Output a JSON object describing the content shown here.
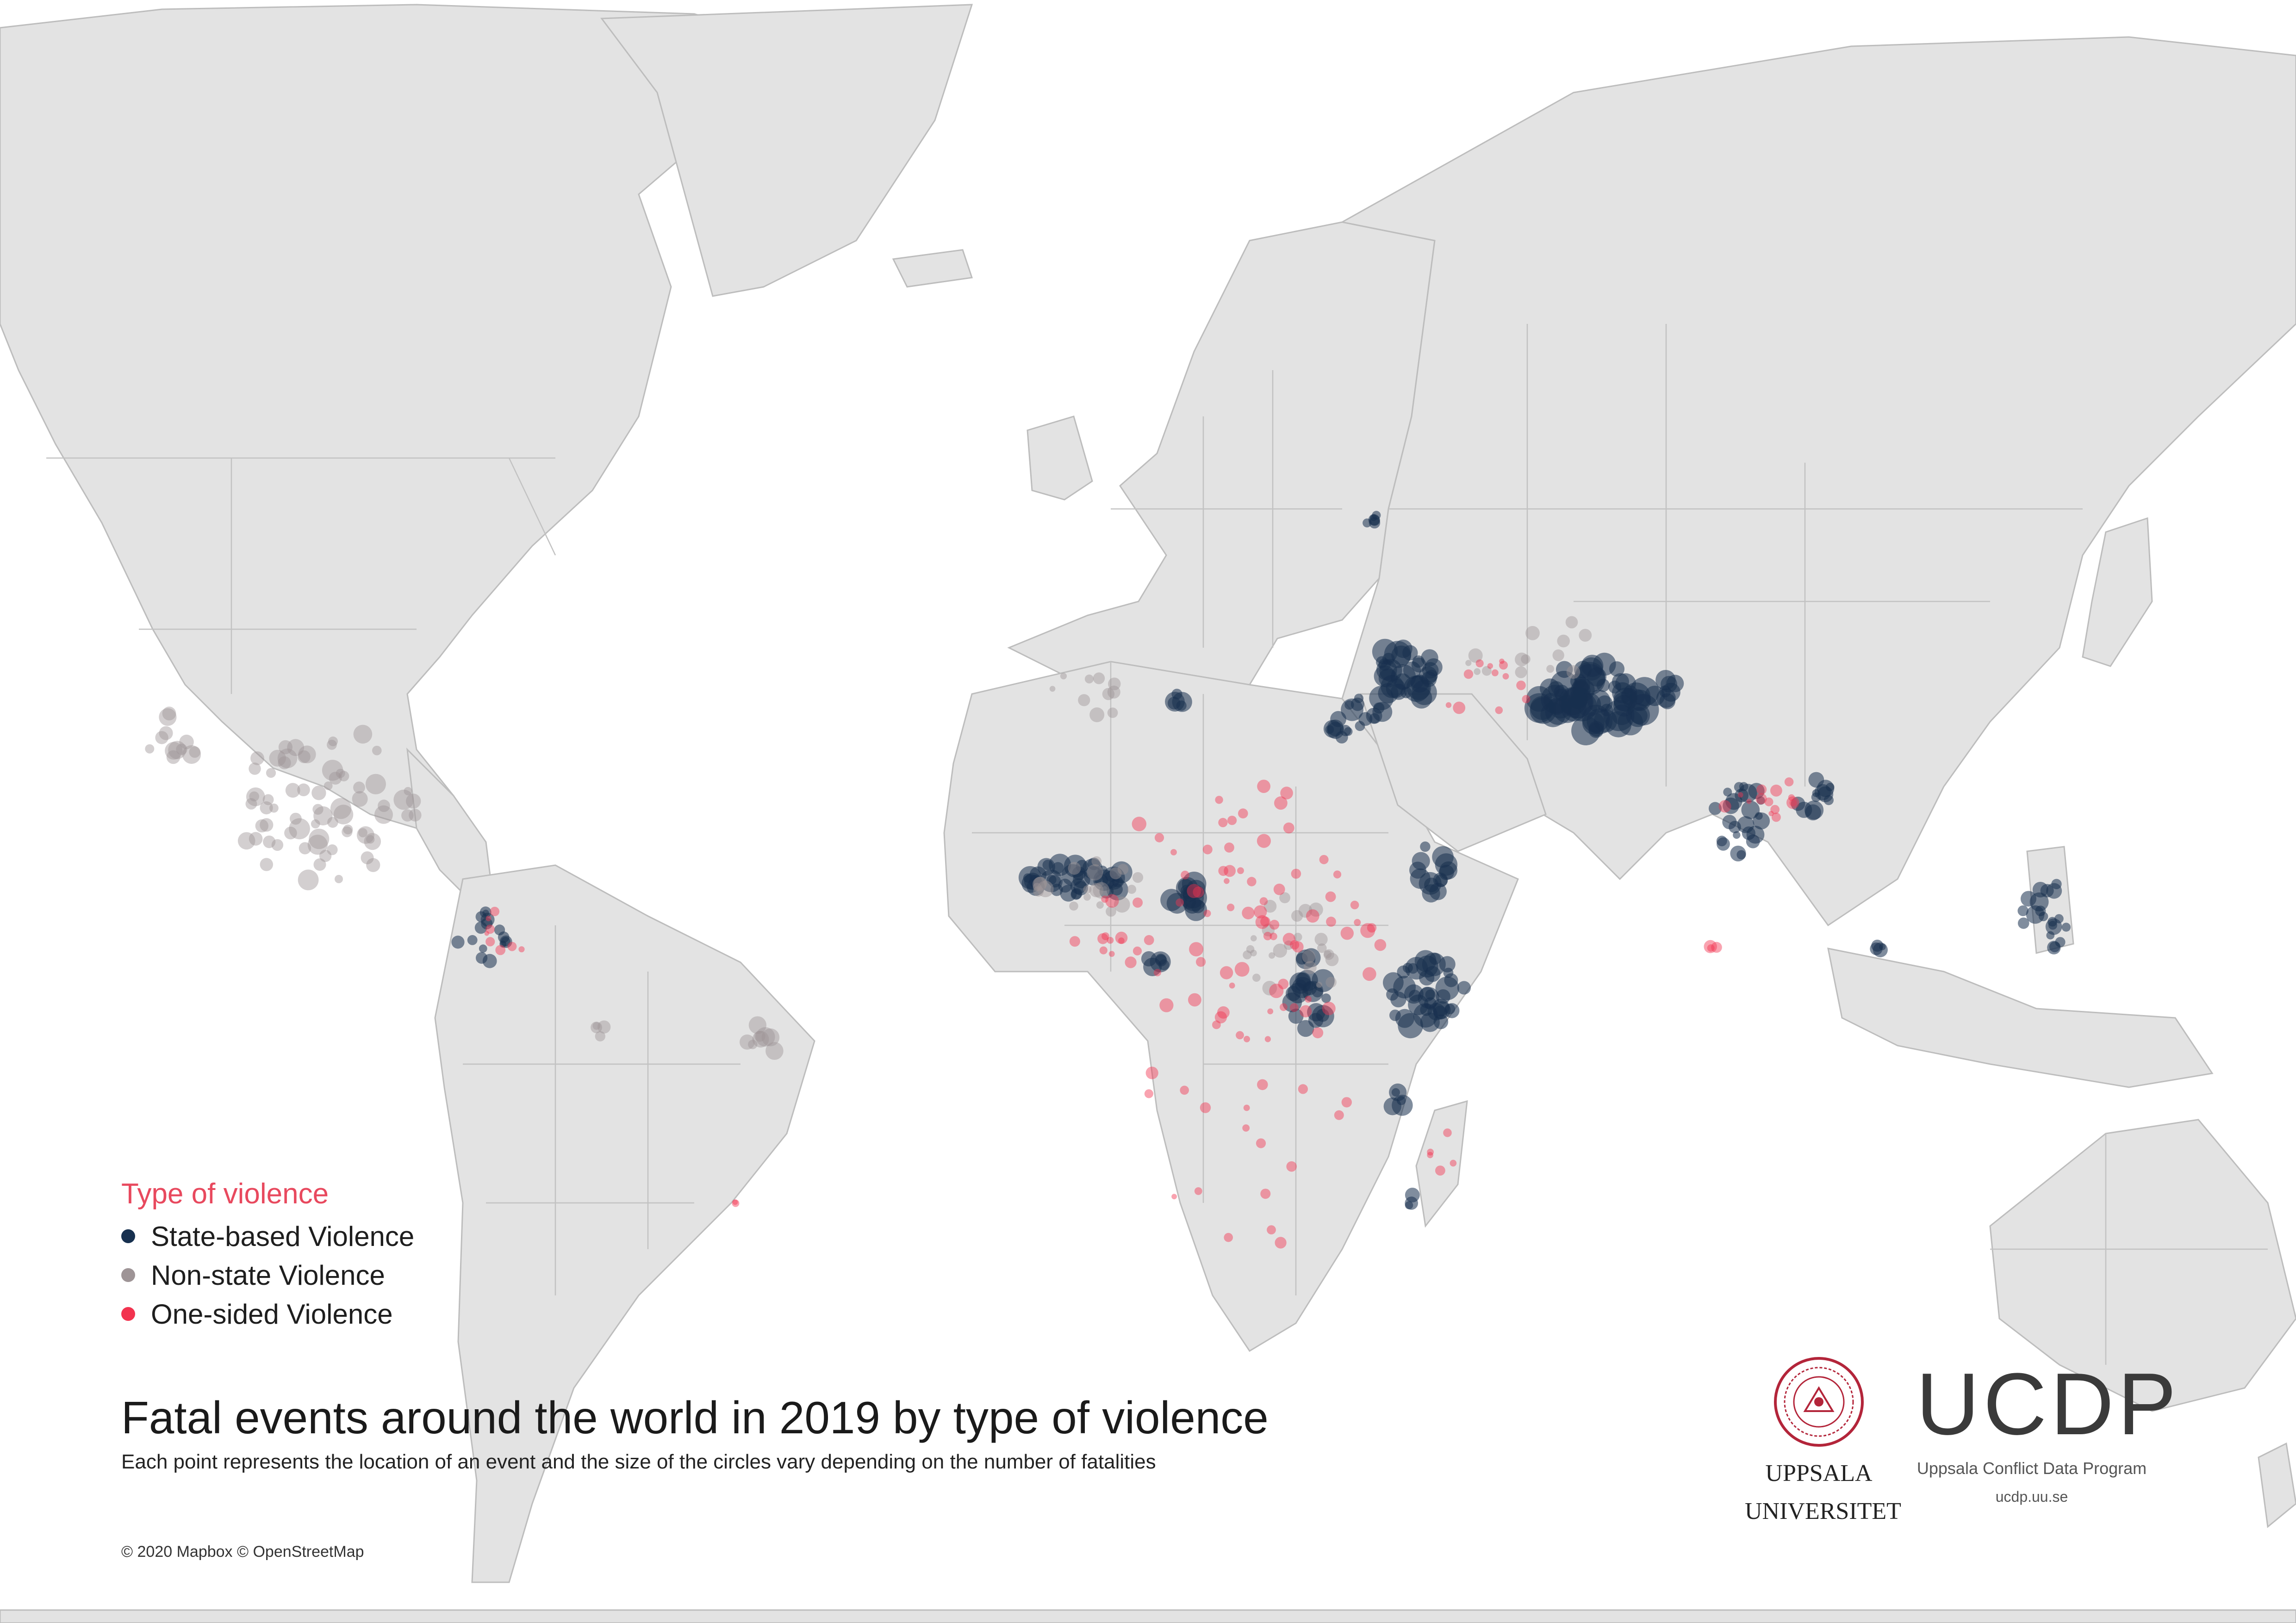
{
  "map": {
    "base_colors": {
      "water": "#ffffff",
      "land": "#e3e3e3",
      "borders": "#bdbdbd"
    },
    "events": {
      "state_color": "#17304f",
      "nonstate_color": "#9e9496",
      "onesided_color": "#f2334f"
    }
  },
  "legend": {
    "title": "Type of violence",
    "items": [
      {
        "label": "State-based Violence",
        "color": "#17304f"
      },
      {
        "label": "Non-state Violence",
        "color": "#9e9496"
      },
      {
        "label": "One-sided Violence",
        "color": "#f2334f"
      }
    ]
  },
  "title": "Fatal events around the world in 2019 by type of violence",
  "subtitle": "Each point represents the location of an event and the size of the circles vary depending on the number of fatalities",
  "attribution": "© 2020 Mapbox  © OpenStreetMap",
  "uppsala": {
    "line1": "UPPSALA",
    "line2": "UNIVERSITET"
  },
  "ucdp": {
    "logo": "UCDP",
    "name": "Uppsala Conflict Data Program",
    "url": "ucdp.uu.se"
  }
}
